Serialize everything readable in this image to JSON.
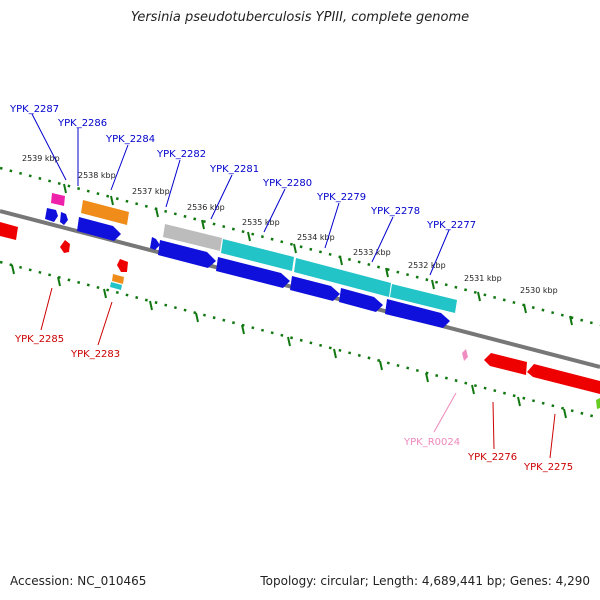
{
  "title": "Yersinia pseudotuberculosis YPIII, complete genome",
  "footer": {
    "accession": "Accession: NC_010465",
    "topology": "Topology: circular; Length: 4,689,441 bp; Genes: 4,290"
  },
  "colors": {
    "blue": "#1010dd",
    "red": "#ee0000",
    "cyan": "#22c4c8",
    "orange": "#f08c1a",
    "magenta": "#ee22aa",
    "gray": "#bcbcbc",
    "pink": "#f08cc0",
    "label_blue": "#0000cc",
    "label_red": "#cc0000",
    "label_pink": "#ee88bb",
    "tick_green": "#117711",
    "axis_gray": "#777777"
  },
  "kbp_labels": [
    "2539 kbp",
    "2538 kbp",
    "2537 kbp",
    "2536 kbp",
    "2535 kbp",
    "2534 kbp",
    "2533 kbp",
    "2532 kbp",
    "2531 kbp",
    "2530 kbp"
  ],
  "genes_top": [
    "YPK_2287",
    "YPK_2286",
    "YPK_2284",
    "YPK_2282",
    "YPK_2281",
    "YPK_2280",
    "YPK_2279",
    "YPK_2278",
    "YPK_2277"
  ],
  "genes_bottom": [
    "YPK_2285",
    "YPK_2283",
    "YPK_R0024",
    "YPK_2276",
    "YPK_2275"
  ]
}
